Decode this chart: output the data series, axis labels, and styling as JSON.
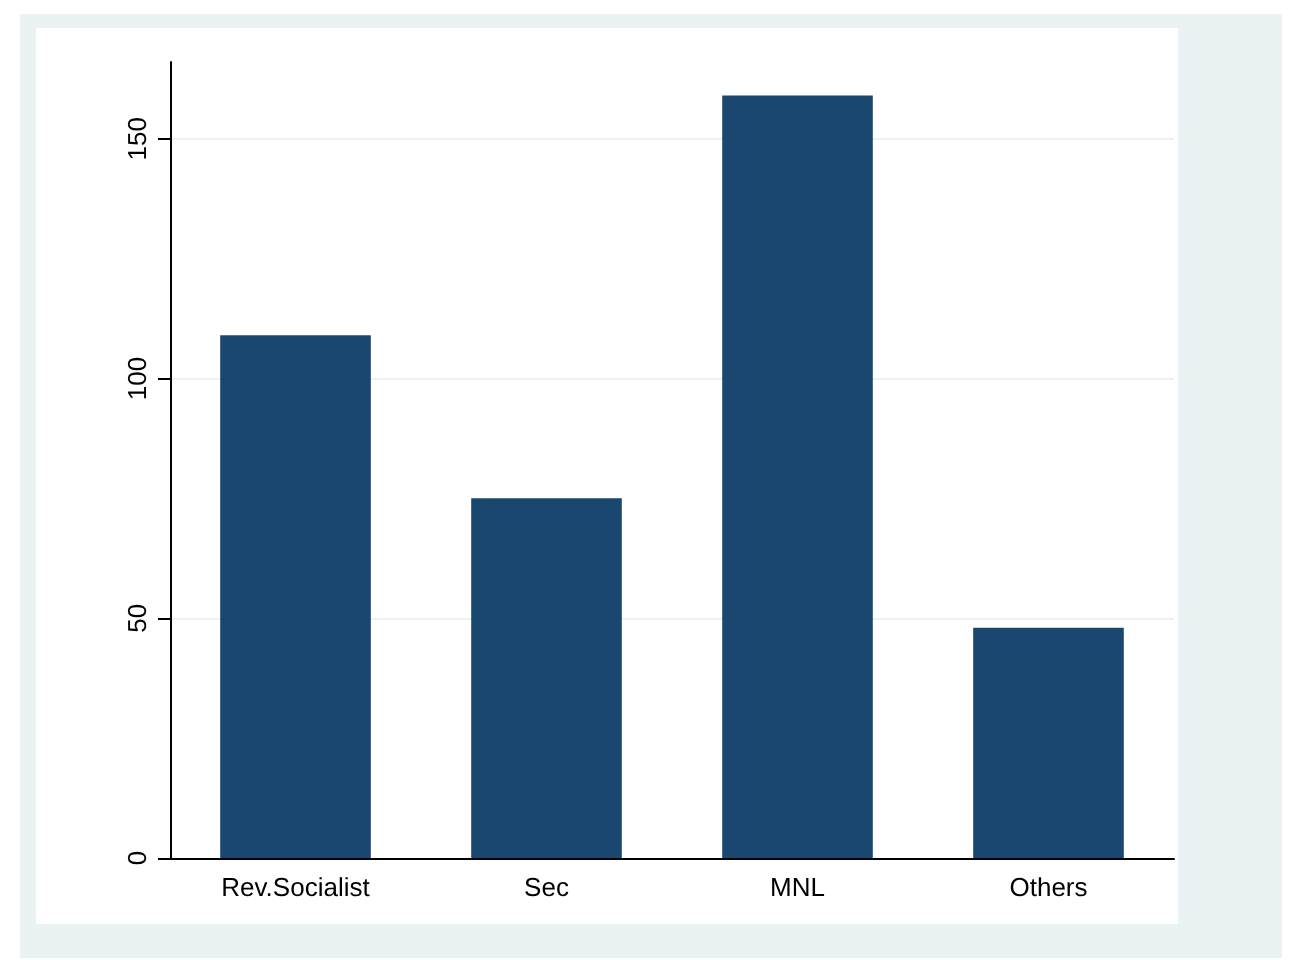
{
  "chart_data": {
    "type": "bar",
    "categories": [
      "Rev.Socialist",
      "Sec",
      "MNL",
      "Others"
    ],
    "values": [
      109,
      75,
      159,
      48
    ],
    "color": "#1a476f",
    "ylim": [
      0,
      166
    ],
    "yticks": [
      0,
      50,
      100,
      150
    ],
    "grid": "y"
  }
}
